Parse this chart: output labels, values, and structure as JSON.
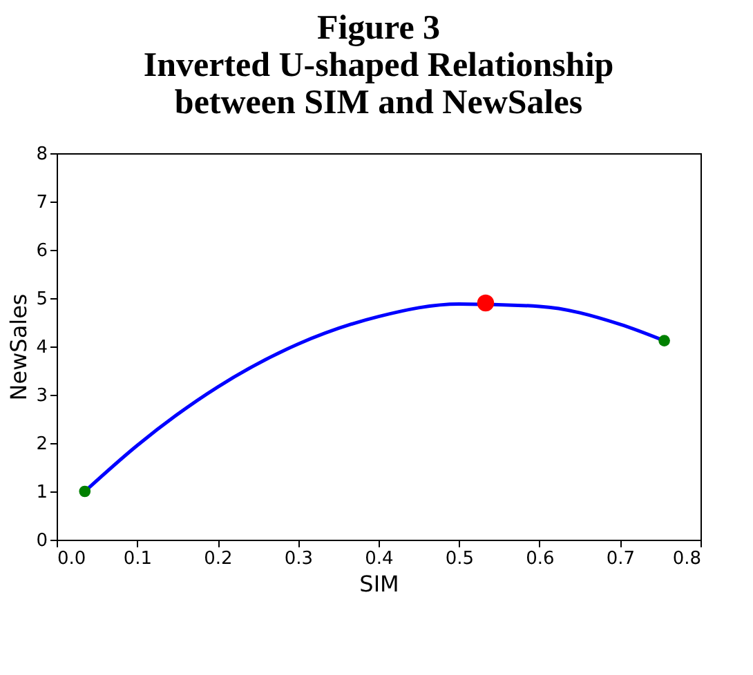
{
  "chart_data": {
    "type": "line",
    "title": [
      "Figure 3",
      "Inverted U-shaped Relationship",
      "between SIM and NewSales"
    ],
    "xlabel": "SIM",
    "ylabel": "NewSales",
    "xlim": [
      0,
      0.8
    ],
    "xticks": [
      {
        "value": 0,
        "label": "0.0"
      },
      {
        "value": 0.1,
        "label": "0.1"
      },
      {
        "value": 0.2,
        "label": "0.2"
      },
      {
        "value": 0.3,
        "label": "0.3"
      },
      {
        "value": 0.4,
        "label": "0.4"
      },
      {
        "value": 0.5,
        "label": "0.5"
      },
      {
        "value": 0.6,
        "label": "0.6"
      },
      {
        "value": 0.7,
        "label": "0.7"
      },
      {
        "value": 0.8,
        "label": "0.8"
      }
    ],
    "ylim": [
      0,
      8
    ],
    "yticks": [
      0,
      1,
      2,
      3,
      4,
      5,
      6,
      7,
      8
    ],
    "grid": false,
    "series": [
      {
        "color": "#0000ff",
        "x": [
          0.035,
          0.1,
          0.2,
          0.3,
          0.4,
          0.5,
          0.6,
          0.7,
          0.755
        ],
        "values": [
          1.0,
          1.95,
          3.16,
          4.05,
          4.62,
          4.88,
          4.83,
          4.46,
          4.12
        ]
      },
      {
        "type": "scatter",
        "color": "#008000",
        "x": [
          0.035,
          0.755
        ],
        "values": [
          1.0,
          4.12
        ]
      },
      {
        "type": "scatter",
        "color": "#ff0000",
        "x": [
          0.533
        ],
        "values": [
          4.9
        ]
      }
    ]
  }
}
